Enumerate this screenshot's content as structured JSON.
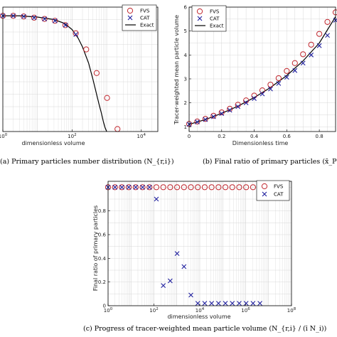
{
  "colors": {
    "fvs": "#c0262d",
    "cat": "#1f1f9e",
    "exact": "#000000",
    "grid": "#d4d4d4"
  },
  "chart_data": [
    {
      "id": "a",
      "type": "scatter",
      "xscale": "log",
      "xlim": [
        1,
        30000
      ],
      "ylim": [
        0,
        1.0
      ],
      "xticks": [
        1,
        100,
        10000
      ],
      "xtick_labels": [
        "10^0",
        "10^2",
        "10^4"
      ],
      "yticks": [],
      "xlabel": "dimensionless volume",
      "ylabel": "",
      "legend": [
        "FVS",
        "CAT",
        "Exact"
      ],
      "legend_position": "top-right",
      "caption": "(a) Primary particles number distribution (N_{r,i})",
      "series": [
        {
          "name": "FVS",
          "marker": "circle",
          "x": [
            1,
            2,
            4,
            8,
            16,
            32,
            64,
            128,
            256,
            512,
            1024,
            2048
          ],
          "y": [
            0.93,
            0.93,
            0.925,
            0.915,
            0.905,
            0.89,
            0.855,
            0.79,
            0.66,
            0.47,
            0.27,
            0.02
          ]
        },
        {
          "name": "CAT",
          "marker": "x",
          "x": [
            1,
            2,
            4,
            8,
            16,
            32,
            64,
            128
          ],
          "y": [
            0.93,
            0.93,
            0.925,
            0.915,
            0.905,
            0.89,
            0.855,
            0.78
          ]
        },
        {
          "name": "Exact",
          "marker": "line",
          "x": [
            1,
            3,
            10,
            30,
            60,
            100,
            150,
            200,
            300,
            400,
            500,
            600,
            700,
            800,
            900,
            1000
          ],
          "y": [
            0.93,
            0.93,
            0.92,
            0.9,
            0.87,
            0.82,
            0.75,
            0.68,
            0.55,
            0.42,
            0.31,
            0.22,
            0.15,
            0.08,
            0.03,
            0.0
          ]
        }
      ]
    },
    {
      "id": "b",
      "type": "scatter",
      "xscale": "linear",
      "xlim": [
        0,
        0.9
      ],
      "ylim": [
        0.8,
        6
      ],
      "xticks": [
        0,
        0.2,
        0.4,
        0.6,
        0.8
      ],
      "xtick_labels": [
        "0",
        "0.2",
        "0.4",
        "0.6",
        "0.8"
      ],
      "yticks": [
        1,
        2,
        3,
        4,
        5,
        6
      ],
      "ytick_labels": [
        "1",
        "2",
        "3",
        "4",
        "5",
        "6"
      ],
      "xlabel": "Dimensionless time",
      "ylabel": "Tracer-weighted mean particle volume",
      "legend": [
        "FVS",
        "CAT",
        "Exact"
      ],
      "legend_position": "top-left",
      "caption": "(b) Final ratio of primary particles (x̄_P)",
      "series": [
        {
          "name": "FVS",
          "marker": "circle",
          "x": [
            0,
            0.05,
            0.1,
            0.15,
            0.2,
            0.25,
            0.3,
            0.35,
            0.4,
            0.45,
            0.5,
            0.55,
            0.6,
            0.65,
            0.7,
            0.75,
            0.8,
            0.85,
            0.9
          ],
          "y": [
            1.12,
            1.22,
            1.33,
            1.46,
            1.6,
            1.75,
            1.92,
            2.1,
            2.3,
            2.52,
            2.76,
            3.03,
            3.33,
            3.66,
            4.03,
            4.43,
            4.88,
            5.38,
            5.78
          ]
        },
        {
          "name": "CAT",
          "marker": "x",
          "x": [
            0,
            0.05,
            0.1,
            0.15,
            0.2,
            0.25,
            0.3,
            0.35,
            0.4,
            0.45,
            0.5,
            0.55,
            0.6,
            0.65,
            0.7,
            0.75,
            0.8,
            0.85,
            0.9
          ],
          "y": [
            1.1,
            1.2,
            1.3,
            1.42,
            1.55,
            1.69,
            1.84,
            2.0,
            2.18,
            2.37,
            2.58,
            2.81,
            3.07,
            3.35,
            3.66,
            4.0,
            4.39,
            4.82,
            5.45
          ]
        },
        {
          "name": "Exact",
          "marker": "line",
          "x": [
            0,
            0.1,
            0.2,
            0.3,
            0.4,
            0.5,
            0.6,
            0.7,
            0.8,
            0.9
          ],
          "y": [
            1.1,
            1.3,
            1.56,
            1.86,
            2.22,
            2.64,
            3.14,
            3.75,
            4.5,
            5.6
          ]
        }
      ]
    },
    {
      "id": "c",
      "type": "scatter",
      "xscale": "log",
      "xlim": [
        1,
        100000000
      ],
      "ylim": [
        0,
        1.05
      ],
      "xticks": [
        1,
        100,
        10000,
        1000000,
        100000000
      ],
      "xtick_labels": [
        "10^0",
        "10^2",
        "10^4",
        "10^6",
        "10^8"
      ],
      "yticks": [
        0,
        0.2,
        0.4,
        0.6,
        0.8
      ],
      "ytick_labels": [
        "0",
        "0.2",
        "0.4",
        "0.6",
        "0.8"
      ],
      "xlabel": "dimensionless volume",
      "ylabel": "Final ratio of primary particles",
      "legend": [
        "FVS",
        "CAT"
      ],
      "legend_position": "top-right",
      "caption": "(c) Progress of tracer-weighted mean particle volume (N_{r,i} / (ī N_i))",
      "series": [
        {
          "name": "FVS",
          "marker": "circle",
          "x": [
            1,
            2,
            4,
            8,
            16,
            32,
            64,
            128,
            256,
            512,
            1024,
            2048,
            4096,
            8192,
            16384,
            32768,
            65536,
            131072,
            262144,
            524288,
            1048576,
            2097152,
            4194304
          ],
          "y": [
            1,
            1,
            1,
            1,
            1,
            1,
            1,
            1,
            1,
            1,
            1,
            1,
            1,
            1,
            1,
            1,
            1,
            1,
            1,
            1,
            1,
            1,
            1
          ]
        },
        {
          "name": "CAT",
          "marker": "x",
          "x": [
            1,
            2,
            4,
            8,
            16,
            32,
            64,
            128,
            256,
            512,
            1024,
            2048,
            4096,
            8192,
            16384,
            32768,
            65536,
            131072,
            262144,
            524288,
            1048576,
            2097152,
            4194304
          ],
          "y": [
            1,
            1,
            1,
            1,
            1,
            1,
            1,
            0.9,
            0.17,
            0.21,
            0.44,
            0.33,
            0.09,
            0.02,
            0.02,
            0.02,
            0.02,
            0.02,
            0.02,
            0.02,
            0.02,
            0.02,
            0.02
          ]
        }
      ]
    }
  ]
}
